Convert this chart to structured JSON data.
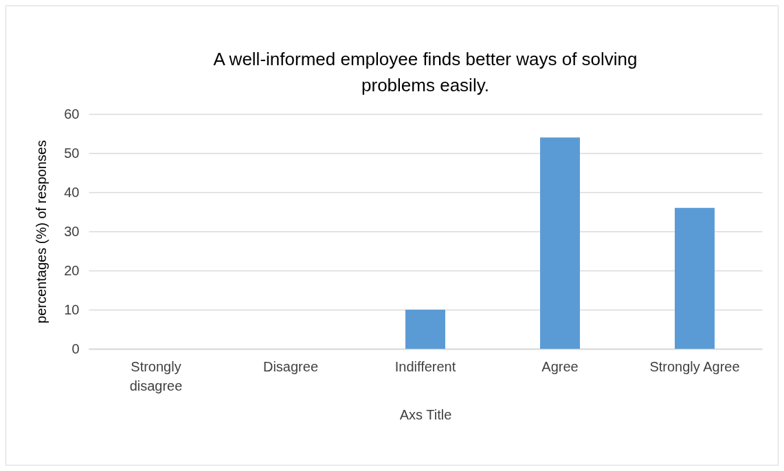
{
  "chart_data": {
    "type": "bar",
    "title": "A well-informed employee finds better ways of solving problems easily.",
    "xlabel": "Axs Title",
    "ylabel": "percentages  (%) of responses",
    "categories": [
      "Strongly disagree",
      "Disagree",
      "Indifferent",
      "Agree",
      "Strongly Agree"
    ],
    "values": [
      0,
      0,
      10,
      54,
      36
    ],
    "color": "#5b9bd5",
    "ylim": [
      0,
      60
    ],
    "yticks": [
      0,
      10,
      20,
      30,
      40,
      50,
      60
    ],
    "grid": "y"
  }
}
